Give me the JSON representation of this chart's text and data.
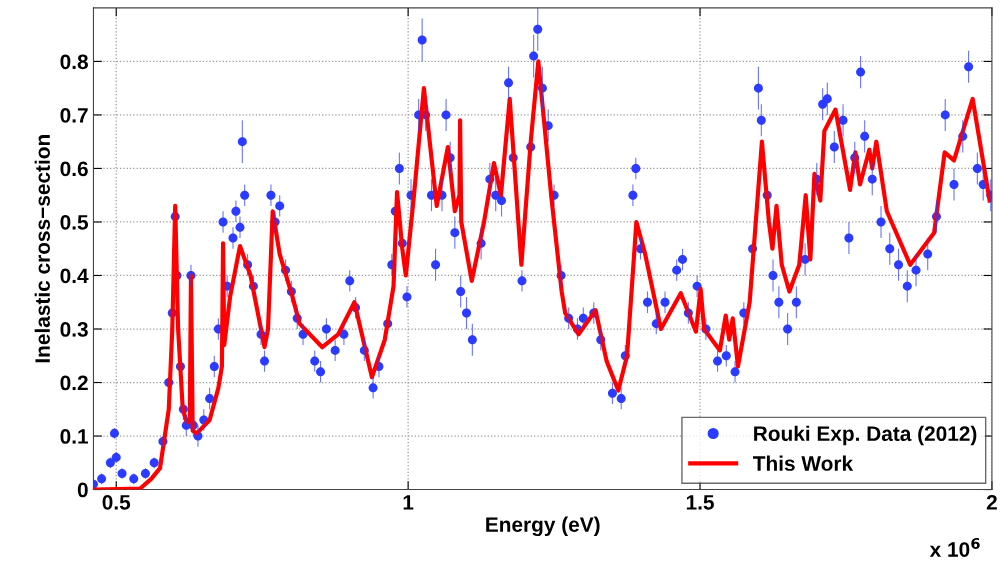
{
  "chart_data": {
    "type": "scatter",
    "xlabel": "Energy (eV)",
    "ylabel": "Inelastic cross−section",
    "annotations": [
      "x 10$^{6}$"
    ],
    "xlim": [
      0.461,
      2.0
    ],
    "xticks": [
      0.5,
      1,
      1.5,
      2
    ],
    "ylim": [
      0,
      0.9
    ],
    "yticks": [
      0,
      0.1,
      0.2,
      0.3,
      0.4,
      0.5,
      0.6,
      0.7,
      0.8
    ],
    "grid": true,
    "legend": "bottom right",
    "series": [
      {
        "name": "Rouki Exp. Data (2012)",
        "marker": "circle",
        "color": "#2b3bff",
        "x": [
          0.461,
          0.475,
          0.49,
          0.497,
          0.5,
          0.51,
          0.53,
          0.55,
          0.565,
          0.58,
          0.59,
          0.596,
          0.601,
          0.604,
          0.61,
          0.615,
          0.62,
          0.628,
          0.632,
          0.64,
          0.65,
          0.66,
          0.668,
          0.675,
          0.683,
          0.69,
          0.7,
          0.705,
          0.712,
          0.716,
          0.72,
          0.725,
          0.735,
          0.748,
          0.754,
          0.765,
          0.772,
          0.78,
          0.79,
          0.8,
          0.81,
          0.82,
          0.84,
          0.85,
          0.86,
          0.875,
          0.89,
          0.9,
          0.91,
          0.925,
          0.94,
          0.95,
          0.965,
          0.972,
          0.978,
          0.985,
          0.99,
          0.998,
          1.005,
          1.018,
          1.024,
          1.03,
          1.04,
          1.047,
          1.058,
          1.065,
          1.072,
          1.08,
          1.09,
          1.1,
          1.11,
          1.125,
          1.14,
          1.15,
          1.16,
          1.172,
          1.18,
          1.195,
          1.21,
          1.215,
          1.222,
          1.23,
          1.24,
          1.25,
          1.262,
          1.275,
          1.29,
          1.3,
          1.318,
          1.33,
          1.35,
          1.365,
          1.372,
          1.385,
          1.39,
          1.398,
          1.41,
          1.425,
          1.44,
          1.46,
          1.47,
          1.48,
          1.495,
          1.51,
          1.53,
          1.545,
          1.56,
          1.575,
          1.59,
          1.6,
          1.605,
          1.615,
          1.625,
          1.635,
          1.65,
          1.665,
          1.68,
          1.7,
          1.71,
          1.718,
          1.73,
          1.745,
          1.755,
          1.765,
          1.775,
          1.782,
          1.795,
          1.81,
          1.825,
          1.84,
          1.855,
          1.87,
          1.89,
          1.905,
          1.92,
          1.935,
          1.95,
          1.96,
          1.975,
          1.985,
          1.998
        ],
        "values": [
          0.01,
          0.02,
          0.05,
          0.105,
          0.06,
          0.03,
          0.02,
          0.03,
          0.05,
          0.09,
          0.2,
          0.33,
          0.51,
          0.4,
          0.23,
          0.15,
          0.12,
          0.4,
          0.12,
          0.1,
          0.13,
          0.17,
          0.23,
          0.3,
          0.5,
          0.38,
          0.47,
          0.52,
          0.49,
          0.65,
          0.55,
          0.42,
          0.38,
          0.29,
          0.24,
          0.55,
          0.5,
          0.53,
          0.41,
          0.37,
          0.32,
          0.29,
          0.24,
          0.22,
          0.3,
          0.26,
          0.29,
          0.39,
          0.34,
          0.26,
          0.19,
          0.23,
          0.31,
          0.42,
          0.52,
          0.6,
          0.46,
          0.36,
          0.55,
          0.7,
          0.84,
          0.7,
          0.55,
          0.42,
          0.55,
          0.7,
          0.62,
          0.48,
          0.37,
          0.33,
          0.28,
          0.46,
          0.58,
          0.55,
          0.54,
          0.76,
          0.62,
          0.39,
          0.64,
          0.81,
          0.86,
          0.75,
          0.68,
          0.55,
          0.4,
          0.32,
          0.3,
          0.32,
          0.33,
          0.28,
          0.18,
          0.17,
          0.25,
          0.55,
          0.6,
          0.45,
          0.35,
          0.31,
          0.35,
          0.41,
          0.43,
          0.33,
          0.38,
          0.3,
          0.24,
          0.25,
          0.22,
          0.33,
          0.45,
          0.75,
          0.69,
          0.55,
          0.4,
          0.35,
          0.3,
          0.35,
          0.43,
          0.58,
          0.72,
          0.73,
          0.64,
          0.69,
          0.47,
          0.62,
          0.78,
          0.66,
          0.58,
          0.5,
          0.45,
          0.42,
          0.38,
          0.41,
          0.44,
          0.51,
          0.7,
          0.57,
          0.66,
          0.79,
          0.6,
          0.57,
          0.55
        ],
        "errors": [
          null,
          0.01,
          0.01,
          0.01,
          0.01,
          0.01,
          0.01,
          0.01,
          0.01,
          0.01,
          null,
          null,
          null,
          null,
          null,
          0.02,
          0.02,
          0.02,
          0.02,
          0.02,
          0.02,
          0.02,
          0.02,
          0.02,
          0.02,
          0.02,
          0.02,
          0.02,
          0.02,
          0.04,
          0.02,
          0.02,
          0.02,
          0.02,
          0.02,
          0.02,
          0.02,
          0.02,
          0.02,
          0.02,
          0.02,
          0.02,
          0.02,
          0.02,
          0.02,
          0.02,
          0.02,
          0.02,
          0.02,
          0.02,
          0.02,
          0.02,
          null,
          0.02,
          null,
          0.03,
          null,
          0.02,
          0.03,
          0.03,
          0.04,
          0.03,
          0.03,
          0.03,
          0.03,
          0.03,
          0.03,
          0.03,
          0.03,
          0.03,
          0.03,
          0.03,
          0.03,
          0.03,
          0.03,
          0.03,
          null,
          0.02,
          null,
          0.04,
          0.04,
          0.04,
          0.03,
          0.02,
          0.02,
          0.02,
          0.02,
          0.02,
          0.02,
          0.02,
          0.02,
          0.02,
          0.02,
          0.02,
          0.02,
          0.02,
          0.02,
          0.02,
          0.02,
          0.02,
          0.02,
          0.02,
          0.02,
          0.02,
          0.02,
          0.02,
          0.02,
          0.02,
          null,
          0.04,
          0.03,
          null,
          0.03,
          0.03,
          0.03,
          0.03,
          0.03,
          0.03,
          0.03,
          0.03,
          0.03,
          0.03,
          0.03,
          0.03,
          0.03,
          0.03,
          0.03,
          0.03,
          0.03,
          0.03,
          0.03,
          0.03,
          0.03,
          0.03,
          0.03,
          0.03,
          0.03,
          0.03,
          0.03,
          0.03,
          0.03
        ]
      },
      {
        "name": "This Work",
        "type": "line",
        "line_style": "solid",
        "color": "#ff0000",
        "x": [
          0.461,
          0.541,
          0.56,
          0.575,
          0.59,
          0.596,
          0.601,
          0.606,
          0.614,
          0.621,
          0.626,
          0.628,
          0.631,
          0.638,
          0.66,
          0.675,
          0.681,
          0.683,
          0.685,
          0.695,
          0.712,
          0.73,
          0.754,
          0.76,
          0.768,
          0.78,
          0.802,
          0.814,
          0.853,
          0.88,
          0.908,
          0.938,
          0.96,
          0.975,
          0.981,
          0.99,
          0.996,
          1.01,
          1.027,
          1.049,
          1.068,
          1.08,
          1.088,
          1.089,
          1.091,
          1.109,
          1.13,
          1.147,
          1.159,
          1.174,
          1.194,
          1.21,
          1.223,
          1.245,
          1.263,
          1.269,
          1.292,
          1.321,
          1.34,
          1.36,
          1.375,
          1.391,
          1.406,
          1.433,
          1.467,
          1.493,
          1.501,
          1.507,
          1.534,
          1.544,
          1.55,
          1.556,
          1.565,
          1.585,
          1.606,
          1.618,
          1.624,
          1.631,
          1.64,
          1.653,
          1.67,
          1.681,
          1.689,
          1.696,
          1.706,
          1.713,
          1.732,
          1.757,
          1.766,
          1.774,
          1.79,
          1.795,
          1.802,
          1.82,
          1.86,
          1.901,
          1.919,
          1.935,
          1.967,
          1.996
        ],
        "values": [
          0.0,
          0.002,
          0.02,
          0.04,
          0.15,
          0.3,
          0.53,
          0.3,
          0.15,
          0.125,
          0.13,
          0.4,
          0.11,
          0.105,
          0.13,
          0.19,
          0.23,
          0.46,
          0.27,
          0.36,
          0.455,
          0.4,
          0.266,
          0.3,
          0.52,
          0.44,
          0.36,
          0.31,
          0.266,
          0.29,
          0.35,
          0.21,
          0.28,
          0.38,
          0.556,
          0.45,
          0.4,
          0.55,
          0.75,
          0.53,
          0.64,
          0.52,
          0.55,
          0.69,
          0.5,
          0.39,
          0.5,
          0.61,
          0.55,
          0.73,
          0.42,
          0.65,
          0.8,
          0.55,
          0.37,
          0.33,
          0.29,
          0.335,
          0.24,
          0.185,
          0.25,
          0.5,
          0.44,
          0.3,
          0.367,
          0.295,
          0.375,
          0.3,
          0.26,
          0.325,
          0.28,
          0.32,
          0.23,
          0.35,
          0.65,
          0.5,
          0.45,
          0.53,
          0.42,
          0.37,
          0.42,
          0.55,
          0.43,
          0.59,
          0.54,
          0.67,
          0.71,
          0.56,
          0.63,
          0.57,
          0.635,
          0.6,
          0.65,
          0.52,
          0.42,
          0.48,
          0.63,
          0.615,
          0.73,
          0.54
        ]
      }
    ]
  }
}
